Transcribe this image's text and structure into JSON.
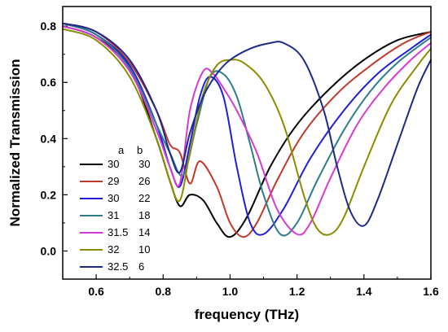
{
  "chart_data": {
    "type": "line",
    "title": "",
    "xlabel": "frequency (THz)",
    "ylabel": "Normalized Transmission",
    "xlim": [
      0.5,
      1.6
    ],
    "ylim": [
      -0.1,
      0.87
    ],
    "xticks": [
      0.6,
      0.8,
      1.0,
      1.2,
      1.4,
      1.6
    ],
    "xtick_labels": [
      "0.6",
      "0.8",
      "1.0",
      "1.2",
      "1.4",
      "1.6"
    ],
    "yticks": [
      0.0,
      0.2,
      0.4,
      0.6,
      0.8
    ],
    "ytick_labels": [
      "0.0",
      "0.2",
      "0.4",
      "0.6",
      "0.8"
    ],
    "grid": false,
    "legend": {
      "placement": "bottom-left",
      "headers": [
        "a",
        "b"
      ]
    },
    "series": [
      {
        "a": "30",
        "b": "30",
        "color": "#000000",
        "x": [
          0.5,
          0.6,
          0.7,
          0.78,
          0.82,
          0.85,
          0.88,
          0.92,
          0.96,
          1.0,
          1.05,
          1.12,
          1.2,
          1.3,
          1.4,
          1.5,
          1.6
        ],
        "y": [
          0.8,
          0.76,
          0.65,
          0.4,
          0.25,
          0.16,
          0.2,
          0.18,
          0.1,
          0.05,
          0.12,
          0.3,
          0.45,
          0.58,
          0.68,
          0.75,
          0.78
        ]
      },
      {
        "a": "29",
        "b": "26",
        "color": "#c0392b",
        "x": [
          0.5,
          0.6,
          0.7,
          0.78,
          0.82,
          0.85,
          0.88,
          0.91,
          0.96,
          1.0,
          1.04,
          1.08,
          1.14,
          1.22,
          1.32,
          1.42,
          1.52,
          1.6
        ],
        "y": [
          0.81,
          0.78,
          0.67,
          0.5,
          0.38,
          0.35,
          0.24,
          0.32,
          0.23,
          0.1,
          0.05,
          0.1,
          0.25,
          0.42,
          0.56,
          0.66,
          0.74,
          0.78
        ]
      },
      {
        "a": "30",
        "b": "22",
        "color": "#1f1fd6",
        "x": [
          0.5,
          0.6,
          0.7,
          0.78,
          0.82,
          0.85,
          0.88,
          0.91,
          0.94,
          0.98,
          1.02,
          1.06,
          1.1,
          1.16,
          1.24,
          1.34,
          1.44,
          1.54,
          1.6
        ],
        "y": [
          0.81,
          0.77,
          0.66,
          0.45,
          0.3,
          0.23,
          0.38,
          0.55,
          0.62,
          0.55,
          0.3,
          0.1,
          0.06,
          0.15,
          0.33,
          0.5,
          0.63,
          0.72,
          0.77
        ]
      },
      {
        "a": "31",
        "b": "18",
        "color": "#2e7d8a",
        "x": [
          0.5,
          0.6,
          0.7,
          0.78,
          0.82,
          0.86,
          0.9,
          0.94,
          0.98,
          1.02,
          1.06,
          1.1,
          1.15,
          1.2,
          1.26,
          1.34,
          1.42,
          1.5,
          1.6
        ],
        "y": [
          0.81,
          0.77,
          0.65,
          0.45,
          0.35,
          0.27,
          0.45,
          0.62,
          0.63,
          0.55,
          0.38,
          0.2,
          0.06,
          0.1,
          0.25,
          0.43,
          0.57,
          0.67,
          0.76
        ]
      },
      {
        "a": "31.5",
        "b": "14",
        "color": "#d63ad6",
        "x": [
          0.5,
          0.6,
          0.7,
          0.78,
          0.82,
          0.85,
          0.88,
          0.92,
          0.95,
          0.98,
          1.02,
          1.08,
          1.14,
          1.2,
          1.24,
          1.3,
          1.38,
          1.46,
          1.54,
          1.6
        ],
        "y": [
          0.8,
          0.76,
          0.64,
          0.43,
          0.3,
          0.24,
          0.5,
          0.64,
          0.63,
          0.58,
          0.5,
          0.35,
          0.15,
          0.06,
          0.1,
          0.26,
          0.45,
          0.58,
          0.68,
          0.74
        ]
      },
      {
        "a": "32",
        "b": "10",
        "color": "#8c8c00",
        "x": [
          0.5,
          0.6,
          0.7,
          0.78,
          0.82,
          0.85,
          0.88,
          0.92,
          0.96,
          1.0,
          1.04,
          1.1,
          1.16,
          1.22,
          1.26,
          1.3,
          1.34,
          1.4,
          1.48,
          1.56,
          1.6
        ],
        "y": [
          0.79,
          0.75,
          0.62,
          0.4,
          0.25,
          0.18,
          0.35,
          0.56,
          0.66,
          0.68,
          0.67,
          0.6,
          0.45,
          0.2,
          0.08,
          0.06,
          0.12,
          0.3,
          0.52,
          0.66,
          0.72
        ]
      },
      {
        "a": "32.5",
        "b": "6",
        "color": "#1b2a8a",
        "x": [
          0.5,
          0.6,
          0.7,
          0.78,
          0.82,
          0.85,
          0.88,
          0.92,
          0.96,
          1.0,
          1.06,
          1.12,
          1.16,
          1.22,
          1.28,
          1.32,
          1.36,
          1.4,
          1.44,
          1.5,
          1.56,
          1.6
        ],
        "y": [
          0.81,
          0.78,
          0.68,
          0.5,
          0.35,
          0.28,
          0.42,
          0.55,
          0.63,
          0.68,
          0.72,
          0.74,
          0.74,
          0.68,
          0.5,
          0.3,
          0.14,
          0.09,
          0.18,
          0.38,
          0.58,
          0.68
        ]
      }
    ]
  }
}
